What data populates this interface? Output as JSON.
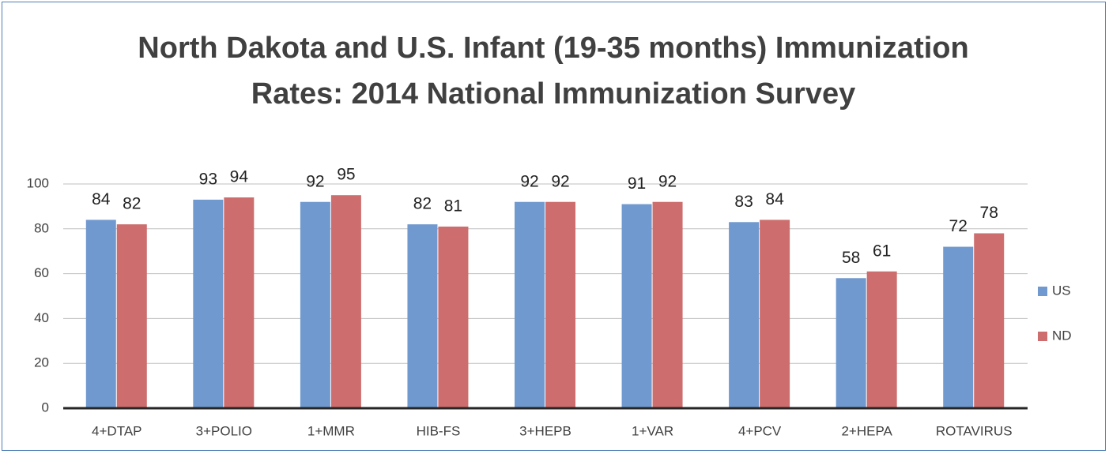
{
  "chart_data": {
    "type": "bar",
    "title": "North Dakota and U.S. Infant (19-35 months) Immunization Rates: 2014 National Immunization Survey",
    "categories": [
      "4+DTAP",
      "3+POLIO",
      "1+MMR",
      "HIB-FS",
      "3+HEPB",
      "1+VAR",
      "4+PCV",
      "2+HEPA",
      "ROTAVIRUS"
    ],
    "series": [
      {
        "name": "US",
        "color": "#7099cf",
        "values": [
          84,
          93,
          92,
          82,
          92,
          91,
          83,
          58,
          72
        ]
      },
      {
        "name": "ND",
        "color": "#cd6d6d",
        "values": [
          82,
          94,
          95,
          81,
          92,
          92,
          84,
          61,
          78
        ]
      }
    ],
    "ylim": [
      0,
      100
    ],
    "yticks": [
      0,
      20,
      40,
      60,
      80,
      100
    ],
    "grid": true,
    "legend": "right"
  }
}
